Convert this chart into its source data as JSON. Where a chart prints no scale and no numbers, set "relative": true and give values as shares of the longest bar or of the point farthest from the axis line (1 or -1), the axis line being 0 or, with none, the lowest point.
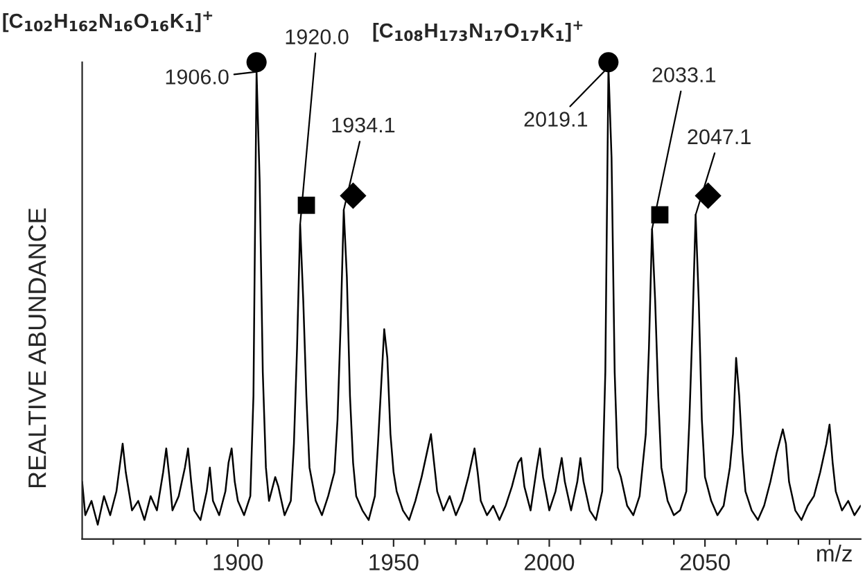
{
  "chart_data": {
    "type": "line",
    "relative": true,
    "xlabel": "m/z",
    "ylabel": "REALTIVE ABUNDANCE",
    "xlim": [
      1850,
      2100
    ],
    "xticks": [
      {
        "value": 1860,
        "label": null
      },
      {
        "value": 1870,
        "label": null
      },
      {
        "value": 1880,
        "label": null
      },
      {
        "value": 1890,
        "label": null
      },
      1900,
      {
        "value": 1910,
        "label": null
      },
      {
        "value": 1920,
        "label": null
      },
      {
        "value": 1930,
        "label": null
      },
      {
        "value": 1940,
        "label": null
      },
      1950,
      {
        "value": 1960,
        "label": null
      },
      {
        "value": 1970,
        "label": null
      },
      {
        "value": 1980,
        "label": null
      },
      {
        "value": 1990,
        "label": null
      },
      2000,
      {
        "value": 2010,
        "label": null
      },
      {
        "value": 2020,
        "label": null
      },
      {
        "value": 2030,
        "label": null
      },
      {
        "value": 2040,
        "label": null
      },
      2050,
      {
        "value": 2060,
        "label": null
      },
      {
        "value": 2070,
        "label": null
      },
      {
        "value": 2080,
        "label": null
      },
      {
        "value": 2090,
        "label": null
      }
    ],
    "grid": false,
    "legend": false,
    "series": [
      {
        "color": "#000000",
        "marker": "none",
        "line_style": "solid",
        "x": [
          1850,
          1851,
          1853,
          1855,
          1857,
          1859,
          1861,
          1862,
          1863,
          1864,
          1865,
          1866,
          1868,
          1870,
          1872,
          1874,
          1876,
          1877,
          1878,
          1879,
          1881,
          1883,
          1884,
          1885,
          1886,
          1888,
          1890,
          1891,
          1892,
          1894,
          1896,
          1897,
          1898,
          1899,
          1900,
          1902,
          1904,
          1905,
          1906,
          1907,
          1908,
          1909,
          1910,
          1912,
          1913,
          1915,
          1917,
          1918,
          1919,
          1920,
          1921,
          1922,
          1923,
          1925,
          1927,
          1929,
          1931,
          1932,
          1933,
          1934,
          1935,
          1936,
          1937,
          1938,
          1940,
          1942,
          1944,
          1945,
          1946,
          1947,
          1948,
          1949,
          1950,
          1951,
          1953,
          1955,
          1957,
          1959,
          1961,
          1962,
          1963,
          1964,
          1966,
          1968,
          1970,
          1972,
          1974,
          1976,
          1977,
          1978,
          1980,
          1982,
          1984,
          1986,
          1988,
          1990,
          1991,
          1992,
          1994,
          1996,
          1997,
          1998,
          2000,
          2002,
          2004,
          2005,
          2007,
          2009,
          2010,
          2011,
          2013,
          2015,
          2017,
          2018,
          2019,
          2020,
          2021,
          2022,
          2023,
          2025,
          2027,
          2029,
          2031,
          2032,
          2033,
          2034,
          2035,
          2036,
          2038,
          2040,
          2042,
          2044,
          2045,
          2046,
          2047,
          2048,
          2049,
          2050,
          2052,
          2054,
          2056,
          2058,
          2059,
          2060,
          2061,
          2062,
          2063,
          2065,
          2067,
          2069,
          2071,
          2073,
          2075,
          2076,
          2077,
          2079,
          2081,
          2083,
          2085,
          2087,
          2089,
          2090,
          2091,
          2092,
          2094,
          2096,
          2098,
          2100
        ],
        "values": [
          0.12,
          0.05,
          0.08,
          0.03,
          0.09,
          0.05,
          0.1,
          0.15,
          0.2,
          0.14,
          0.1,
          0.06,
          0.08,
          0.04,
          0.09,
          0.06,
          0.14,
          0.19,
          0.13,
          0.06,
          0.09,
          0.15,
          0.19,
          0.12,
          0.06,
          0.04,
          0.1,
          0.15,
          0.08,
          0.05,
          0.1,
          0.16,
          0.19,
          0.12,
          0.08,
          0.05,
          0.09,
          0.3,
          0.98,
          0.75,
          0.35,
          0.15,
          0.08,
          0.13,
          0.11,
          0.05,
          0.08,
          0.2,
          0.4,
          0.66,
          0.5,
          0.3,
          0.15,
          0.08,
          0.05,
          0.09,
          0.14,
          0.25,
          0.45,
          0.69,
          0.55,
          0.3,
          0.16,
          0.09,
          0.06,
          0.04,
          0.09,
          0.2,
          0.32,
          0.44,
          0.38,
          0.22,
          0.14,
          0.1,
          0.06,
          0.04,
          0.08,
          0.13,
          0.19,
          0.22,
          0.16,
          0.1,
          0.06,
          0.09,
          0.05,
          0.08,
          0.13,
          0.19,
          0.14,
          0.08,
          0.05,
          0.07,
          0.04,
          0.07,
          0.11,
          0.16,
          0.17,
          0.11,
          0.06,
          0.15,
          0.19,
          0.13,
          0.06,
          0.1,
          0.17,
          0.12,
          0.06,
          0.12,
          0.17,
          0.12,
          0.06,
          0.04,
          0.1,
          0.35,
          0.99,
          0.8,
          0.35,
          0.15,
          0.13,
          0.07,
          0.05,
          0.09,
          0.22,
          0.4,
          0.65,
          0.5,
          0.3,
          0.15,
          0.08,
          0.05,
          0.06,
          0.1,
          0.25,
          0.45,
          0.68,
          0.5,
          0.25,
          0.13,
          0.08,
          0.05,
          0.07,
          0.15,
          0.22,
          0.38,
          0.3,
          0.18,
          0.1,
          0.06,
          0.04,
          0.07,
          0.12,
          0.18,
          0.23,
          0.2,
          0.12,
          0.06,
          0.04,
          0.07,
          0.09,
          0.14,
          0.2,
          0.24,
          0.16,
          0.1,
          0.06,
          0.08,
          0.05,
          0.07
        ]
      },
      {
        "type": "scatter",
        "color": "#000000",
        "marker": "circle",
        "x": [
          1906,
          2019
        ],
        "values": [
          1.0,
          1.0
        ]
      },
      {
        "type": "scatter",
        "color": "#000000",
        "marker": "square",
        "x": [
          1922,
          2035.5
        ],
        "values": [
          0.7,
          0.68
        ]
      },
      {
        "type": "scatter",
        "color": "#000000",
        "marker": "diamond",
        "x": [
          1937,
          2051
        ],
        "values": [
          0.72,
          0.72
        ]
      }
    ],
    "annotations": [
      "[C$_{102}$H$_{162}$N$_{16}$O$_{16}$K$_{1}$]$^{+}$",
      {
        "text": "1906.0",
        "x": 1906,
        "y": 0.98
      },
      {
        "text": "1920.0",
        "x": 1920,
        "y": 0.66
      },
      {
        "text": "1934.1",
        "x": 1934,
        "y": 0.69
      },
      "[C$_{108}$H$_{173}$N$_{17}$O$_{17}$K$_{1}$]$^{+}$",
      {
        "text": "2019.1",
        "x": 2019,
        "y": 0.99
      },
      {
        "text": "2033.1",
        "x": 2033,
        "y": 0.65
      },
      {
        "text": "2047.1",
        "x": 2047,
        "y": 0.68
      }
    ]
  }
}
